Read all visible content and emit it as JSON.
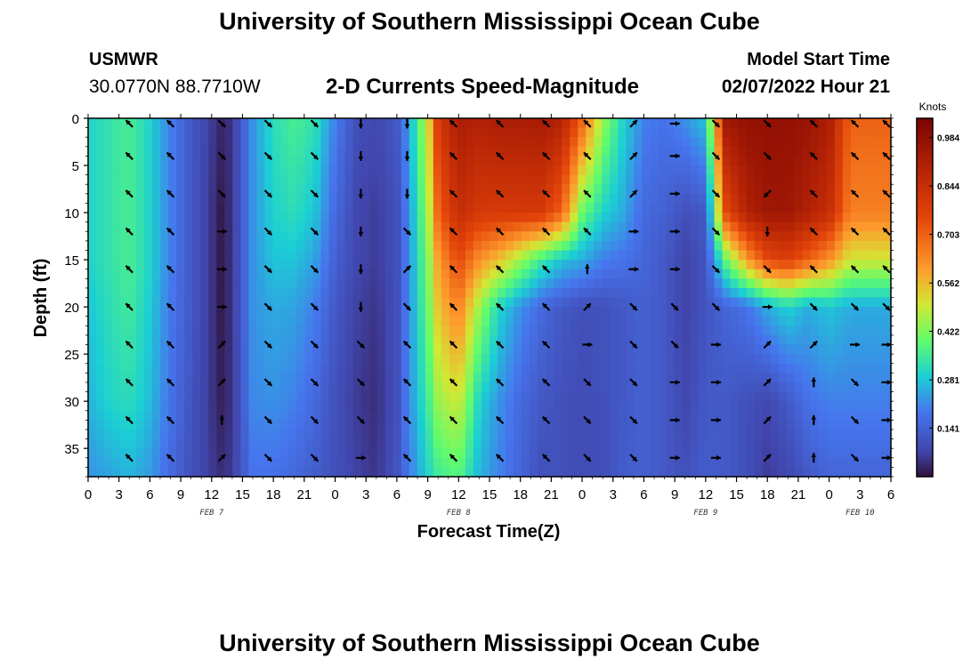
{
  "title": "University of Southern Mississippi Ocean Cube",
  "footer_title": "University of Southern Mississippi Ocean Cube",
  "station": {
    "name": "USMWR",
    "coords": "30.0770N  88.7710W"
  },
  "subtitle": "2-D Currents Speed-Magnitude",
  "model": {
    "label": "Model Start Time",
    "time": "02/07/2022 Hour 21"
  },
  "chart_data": {
    "type": "heatmap",
    "title": "2-D Currents Speed-Magnitude",
    "xlabel": "Forecast Time(Z)",
    "ylabel": "Depth (ft)",
    "x_ticks": [
      "0",
      "3",
      "6",
      "9",
      "12",
      "15",
      "18",
      "21",
      "0",
      "3",
      "6",
      "9",
      "12",
      "15",
      "18",
      "21",
      "0",
      "3",
      "6",
      "9",
      "12",
      "15",
      "18",
      "21",
      "0",
      "3",
      "6"
    ],
    "x_range_hours": [
      0,
      78
    ],
    "date_labels": [
      {
        "label": "FEB 7",
        "hour": 12
      },
      {
        "label": "FEB 8",
        "hour": 36
      },
      {
        "label": "FEB 9",
        "hour": 60
      },
      {
        "label": "FEB 10",
        "hour": 75
      }
    ],
    "y_ticks": [
      0,
      5,
      10,
      15,
      20,
      25,
      30,
      35
    ],
    "y_range_ft": [
      0,
      38
    ],
    "colorbar": {
      "label": "Knots",
      "range": [
        0,
        1.04
      ],
      "ticks": [
        "0.984",
        "0.844",
        "0.703",
        "0.562",
        "0.422",
        "0.281",
        "0.141"
      ]
    },
    "speed_time_hours": [
      0,
      2,
      4,
      6,
      8,
      10,
      12,
      13,
      14,
      16,
      18,
      20,
      22,
      24,
      26,
      28,
      30,
      31,
      33,
      34,
      36,
      38,
      40,
      42,
      44,
      46,
      48,
      50,
      52,
      54,
      56,
      58,
      60,
      62,
      64,
      66,
      68,
      70,
      72,
      74,
      76,
      78
    ],
    "speed_depth_ft": [
      0,
      10,
      15,
      20,
      30,
      38
    ],
    "speed_knots": [
      [
        0.3,
        0.3,
        0.3,
        0.28,
        0.26,
        0.22
      ],
      [
        0.33,
        0.33,
        0.33,
        0.32,
        0.3,
        0.24
      ],
      [
        0.36,
        0.36,
        0.36,
        0.35,
        0.32,
        0.26
      ],
      [
        0.3,
        0.3,
        0.3,
        0.29,
        0.27,
        0.23
      ],
      [
        0.2,
        0.2,
        0.2,
        0.19,
        0.18,
        0.16
      ],
      [
        0.12,
        0.12,
        0.12,
        0.12,
        0.11,
        0.1
      ],
      [
        0.06,
        0.05,
        0.05,
        0.05,
        0.05,
        0.06
      ],
      [
        0.03,
        0.01,
        0.01,
        0.01,
        0.02,
        0.04
      ],
      [
        0.05,
        0.05,
        0.05,
        0.05,
        0.05,
        0.06
      ],
      [
        0.22,
        0.22,
        0.22,
        0.22,
        0.21,
        0.18
      ],
      [
        0.32,
        0.3,
        0.28,
        0.25,
        0.22,
        0.18
      ],
      [
        0.36,
        0.32,
        0.28,
        0.24,
        0.2,
        0.16
      ],
      [
        0.33,
        0.28,
        0.24,
        0.2,
        0.16,
        0.13
      ],
      [
        0.2,
        0.16,
        0.14,
        0.12,
        0.1,
        0.1
      ],
      [
        0.1,
        0.08,
        0.08,
        0.07,
        0.06,
        0.07
      ],
      [
        0.08,
        0.06,
        0.06,
        0.05,
        0.04,
        0.05
      ],
      [
        0.12,
        0.1,
        0.1,
        0.1,
        0.1,
        0.11
      ],
      [
        0.22,
        0.2,
        0.2,
        0.2,
        0.2,
        0.18
      ],
      [
        0.5,
        0.45,
        0.42,
        0.4,
        0.35,
        0.3
      ],
      [
        0.8,
        0.7,
        0.6,
        0.55,
        0.45,
        0.35
      ],
      [
        0.92,
        0.85,
        0.75,
        0.65,
        0.5,
        0.38
      ],
      [
        0.9,
        0.8,
        0.62,
        0.45,
        0.3,
        0.26
      ],
      [
        0.92,
        0.8,
        0.55,
        0.3,
        0.22,
        0.2
      ],
      [
        0.92,
        0.8,
        0.45,
        0.22,
        0.16,
        0.15
      ],
      [
        0.93,
        0.8,
        0.35,
        0.16,
        0.12,
        0.1
      ],
      [
        0.9,
        0.7,
        0.28,
        0.12,
        0.1,
        0.1
      ],
      [
        0.7,
        0.4,
        0.25,
        0.1,
        0.09,
        0.09
      ],
      [
        0.45,
        0.3,
        0.2,
        0.1,
        0.1,
        0.1
      ],
      [
        0.3,
        0.25,
        0.18,
        0.12,
        0.12,
        0.13
      ],
      [
        0.2,
        0.16,
        0.15,
        0.14,
        0.14,
        0.14
      ],
      [
        0.18,
        0.14,
        0.12,
        0.12,
        0.12,
        0.12
      ],
      [
        0.22,
        0.1,
        0.07,
        0.07,
        0.08,
        0.1
      ],
      [
        0.28,
        0.12,
        0.11,
        0.11,
        0.12,
        0.13
      ],
      [
        0.95,
        0.75,
        0.4,
        0.15,
        0.12,
        0.12
      ],
      [
        0.98,
        0.9,
        0.6,
        0.18,
        0.1,
        0.1
      ],
      [
        0.98,
        0.95,
        0.75,
        0.25,
        0.08,
        0.06
      ],
      [
        0.98,
        0.95,
        0.78,
        0.3,
        0.12,
        0.08
      ],
      [
        0.96,
        0.9,
        0.7,
        0.25,
        0.18,
        0.12
      ],
      [
        0.92,
        0.85,
        0.62,
        0.28,
        0.2,
        0.15
      ],
      [
        0.7,
        0.65,
        0.5,
        0.25,
        0.2,
        0.15
      ],
      [
        0.7,
        0.65,
        0.5,
        0.25,
        0.2,
        0.15
      ],
      [
        0.7,
        0.65,
        0.5,
        0.25,
        0.2,
        0.15
      ]
    ],
    "arrow_time_hours": [
      4,
      8,
      13,
      17.5,
      22,
      26.5,
      31,
      35.5,
      40,
      44.5,
      48.5,
      53,
      57,
      61,
      66,
      70.5,
      74.5,
      78
    ],
    "arrow_depth_ft": [
      0,
      4,
      8,
      12,
      16,
      20,
      24,
      28,
      32,
      36
    ],
    "arrow_direction_deg": [
      [
        315,
        315,
        135,
        135,
        135,
        180,
        180,
        315,
        315,
        315,
        315,
        45,
        90,
        135,
        135,
        315,
        315,
        315
      ],
      [
        315,
        315,
        135,
        135,
        135,
        180,
        180,
        315,
        315,
        315,
        315,
        45,
        90,
        135,
        135,
        315,
        315,
        315
      ],
      [
        315,
        315,
        135,
        135,
        135,
        180,
        180,
        315,
        315,
        315,
        315,
        45,
        90,
        135,
        225,
        315,
        315,
        315
      ],
      [
        315,
        315,
        90,
        135,
        135,
        180,
        135,
        315,
        315,
        315,
        315,
        90,
        90,
        135,
        180,
        315,
        315,
        315
      ],
      [
        315,
        315,
        90,
        135,
        135,
        180,
        45,
        315,
        315,
        315,
        0,
        90,
        90,
        135,
        135,
        315,
        315,
        315
      ],
      [
        315,
        315,
        90,
        135,
        135,
        180,
        135,
        315,
        315,
        315,
        45,
        135,
        135,
        135,
        90,
        135,
        135,
        135
      ],
      [
        315,
        315,
        45,
        135,
        135,
        135,
        315,
        315,
        315,
        315,
        90,
        135,
        135,
        90,
        45,
        45,
        90,
        90
      ],
      [
        315,
        315,
        45,
        135,
        135,
        135,
        315,
        315,
        315,
        315,
        135,
        135,
        90,
        90,
        45,
        0,
        135,
        90
      ],
      [
        315,
        315,
        0,
        135,
        135,
        135,
        315,
        315,
        315,
        315,
        135,
        135,
        90,
        90,
        45,
        0,
        135,
        90
      ],
      [
        315,
        315,
        45,
        135,
        135,
        90,
        315,
        315,
        315,
        315,
        135,
        135,
        90,
        90,
        45,
        0,
        135,
        90
      ]
    ]
  }
}
